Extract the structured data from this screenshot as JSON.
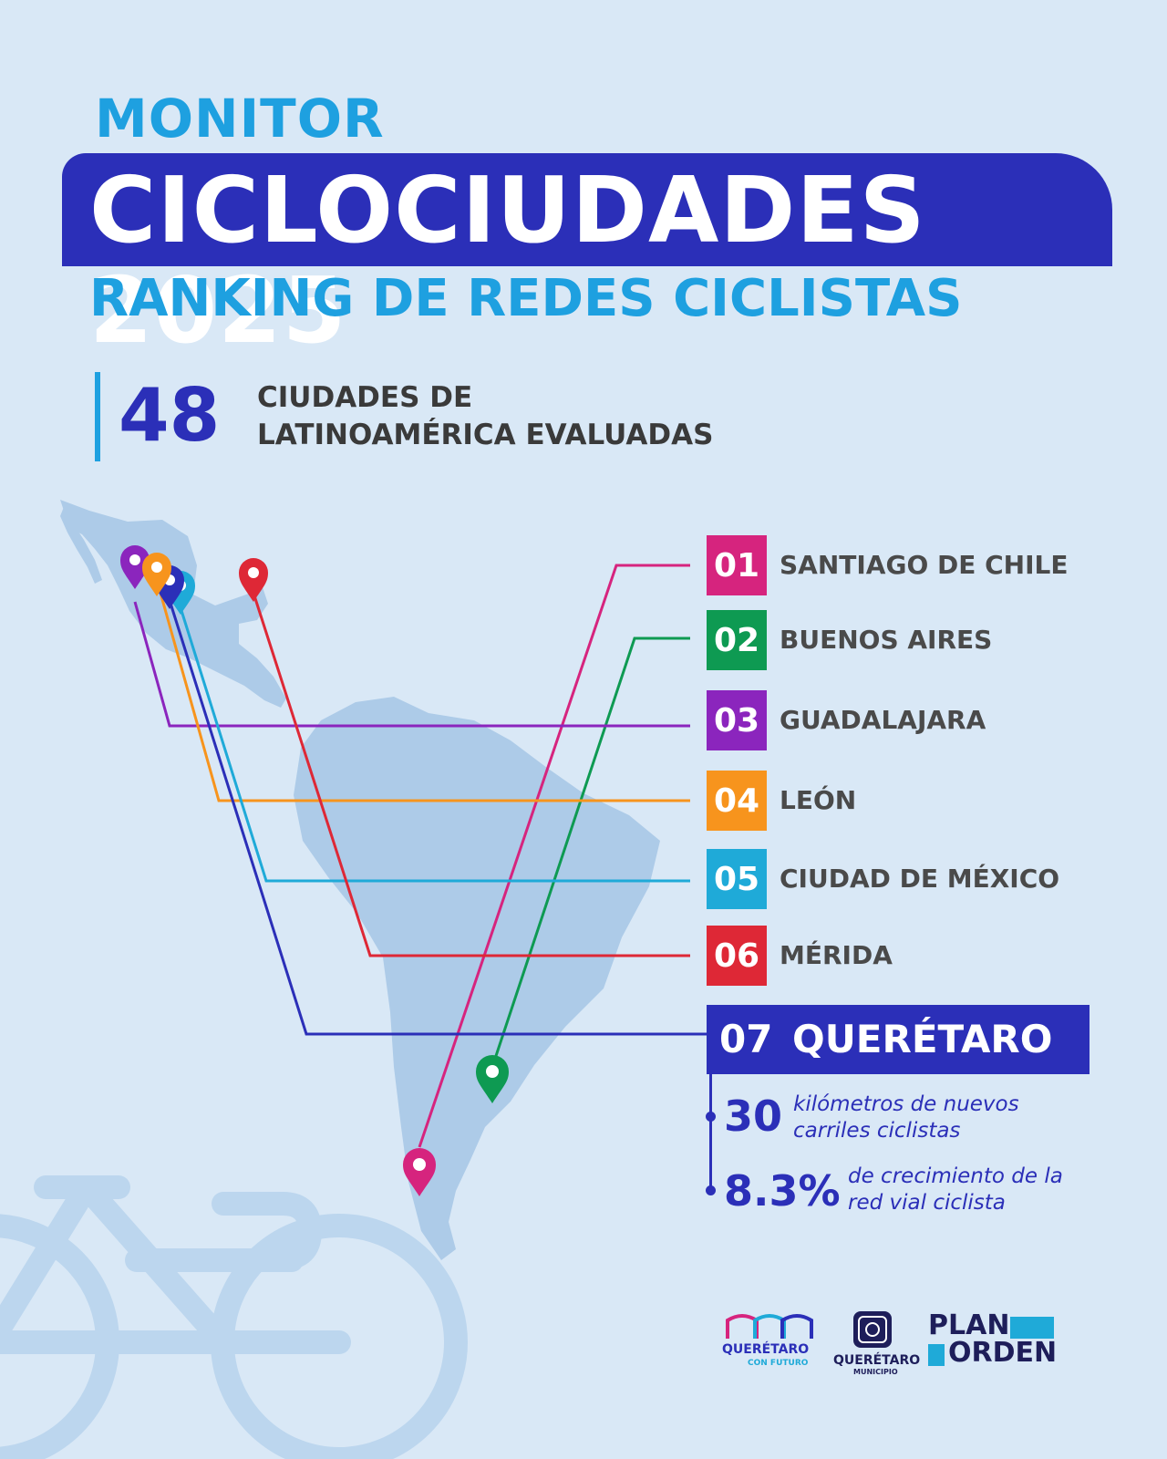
{
  "header": {
    "pre_title": "MONITOR",
    "title": "CICLOCIUDADES 2025",
    "subtitle": "RANKING DE REDES CICLISTAS"
  },
  "stat": {
    "number": "48",
    "line1": "CIUDADES DE",
    "line2": "LATINOAMÉRICA EVALUADAS"
  },
  "ranking": [
    {
      "rank": "01",
      "city": "SANTIAGO DE CHILE",
      "color": "#d6247e"
    },
    {
      "rank": "02",
      "city": "BUENOS AIRES",
      "color": "#0e9a52"
    },
    {
      "rank": "03",
      "city": "GUADALAJARA",
      "color": "#8b25bd"
    },
    {
      "rank": "04",
      "city": "LEÓN",
      "color": "#f7941d"
    },
    {
      "rank": "05",
      "city": "CIUDAD DE MÉXICO",
      "color": "#1faad8"
    },
    {
      "rank": "06",
      "city": "MÉRIDA",
      "color": "#de2836"
    }
  ],
  "queretaro": {
    "rank": "07",
    "city": "QUERÉTARO",
    "color": "#2b2fb8",
    "facts": [
      {
        "number": "30",
        "line1": "kilómetros de nuevos",
        "line2": "carriles ciclistas"
      },
      {
        "number": "8.3%",
        "line1": "de crecimiento de la",
        "line2": "red vial ciclista"
      }
    ]
  },
  "logos": {
    "queretaro_futuro": {
      "line1": "QUERÉTARO",
      "line2": "CON FUTURO"
    },
    "municipio": {
      "line1": "QUERÉTARO",
      "line2": "MUNICIPIO"
    },
    "plan_orden": {
      "line1": "PLAN",
      "line2": "ORDEN"
    }
  }
}
